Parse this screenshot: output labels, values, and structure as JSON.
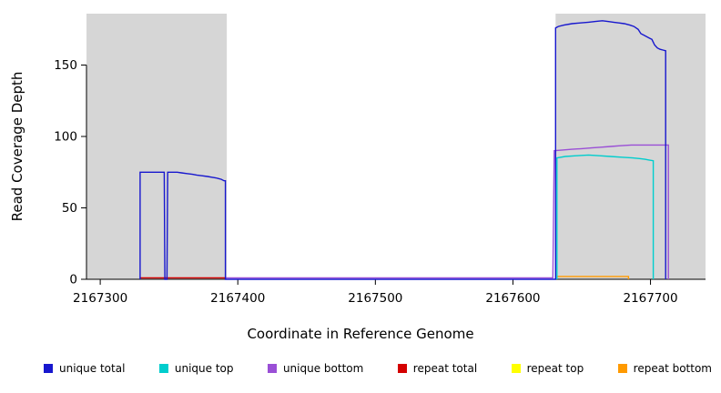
{
  "chart_data": {
    "type": "line",
    "title": "",
    "xlabel": "Coordinate in Reference Genome",
    "ylabel": "Read Coverage Depth",
    "xlim": [
      2167290,
      2167740
    ],
    "ylim": [
      0,
      186
    ],
    "xticks": [
      2167300,
      2167400,
      2167500,
      2167600,
      2167700
    ],
    "yticks": [
      0,
      50,
      100,
      150
    ],
    "grid": false,
    "legend_position": "bottom",
    "plot_background": "#ffffff",
    "shaded_regions": [
      {
        "x0": 2167290,
        "x1": 2167392,
        "color": "#d6d6d6"
      },
      {
        "x0": 2167631,
        "x1": 2167740,
        "color": "#d6d6d6"
      }
    ],
    "series": [
      {
        "name": "unique total",
        "color": "#1717ce",
        "points": [
          [
            2167329,
            0
          ],
          [
            2167329,
            75
          ],
          [
            2167346.5,
            75
          ],
          [
            2167347,
            0
          ],
          [
            2167348.5,
            0
          ],
          [
            2167349,
            75
          ],
          [
            2167356,
            75
          ],
          [
            2167359,
            74.5
          ],
          [
            2167363,
            74
          ],
          [
            2167367,
            73.5
          ],
          [
            2167370,
            73
          ],
          [
            2167374,
            72.5
          ],
          [
            2167378,
            72
          ],
          [
            2167381,
            71.5
          ],
          [
            2167384,
            71
          ],
          [
            2167386,
            70.5
          ],
          [
            2167388,
            70
          ],
          [
            2167390,
            69
          ],
          [
            2167391,
            69
          ],
          [
            2167391,
            0
          ],
          [
            2167631,
            0
          ],
          [
            2167631,
            176
          ],
          [
            2167633,
            177
          ],
          [
            2167637,
            178
          ],
          [
            2167643,
            179
          ],
          [
            2167649,
            179.5
          ],
          [
            2167655,
            180
          ],
          [
            2167660,
            180.5
          ],
          [
            2167665,
            181
          ],
          [
            2167669,
            180.5
          ],
          [
            2167673,
            180
          ],
          [
            2167677,
            179.5
          ],
          [
            2167681,
            179
          ],
          [
            2167685,
            178
          ],
          [
            2167688,
            177
          ],
          [
            2167691,
            175
          ],
          [
            2167693,
            172
          ],
          [
            2167695,
            171
          ],
          [
            2167697,
            170
          ],
          [
            2167699,
            169
          ],
          [
            2167701,
            168
          ],
          [
            2167702,
            166
          ],
          [
            2167703,
            164
          ],
          [
            2167705,
            162
          ],
          [
            2167707,
            161
          ],
          [
            2167709,
            160.5
          ],
          [
            2167711,
            160
          ],
          [
            2167711,
            0
          ]
        ]
      },
      {
        "name": "unique top",
        "color": "#00cdcd",
        "points": [
          [
            2167632,
            0
          ],
          [
            2167632,
            85
          ],
          [
            2167638,
            86
          ],
          [
            2167646,
            86.5
          ],
          [
            2167655,
            87
          ],
          [
            2167663,
            86.5
          ],
          [
            2167671,
            86
          ],
          [
            2167679,
            85.5
          ],
          [
            2167687,
            85
          ],
          [
            2167692,
            84.5
          ],
          [
            2167696,
            84
          ],
          [
            2167699,
            83.5
          ],
          [
            2167702,
            83
          ],
          [
            2167702,
            0
          ]
        ]
      },
      {
        "name": "unique bottom",
        "color": "#9a4fd6",
        "points": [
          [
            2167391,
            1
          ],
          [
            2167629,
            1
          ],
          [
            2167630,
            90
          ],
          [
            2167636,
            90.5
          ],
          [
            2167643,
            91
          ],
          [
            2167650,
            91.5
          ],
          [
            2167657,
            92
          ],
          [
            2167664,
            92.5
          ],
          [
            2167671,
            93
          ],
          [
            2167678,
            93.5
          ],
          [
            2167686,
            94
          ],
          [
            2167713,
            94
          ],
          [
            2167713,
            0
          ]
        ]
      },
      {
        "name": "repeat total",
        "color": "#d40000",
        "points": [
          [
            2167329,
            1
          ],
          [
            2167391,
            1
          ],
          [
            2167391,
            0
          ]
        ]
      },
      {
        "name": "repeat top",
        "color": "#ffff00",
        "points": []
      },
      {
        "name": "repeat bottom",
        "color": "#ff9a00",
        "points": [
          [
            2167632,
            2
          ],
          [
            2167684,
            2
          ],
          [
            2167684,
            0
          ]
        ]
      }
    ]
  }
}
